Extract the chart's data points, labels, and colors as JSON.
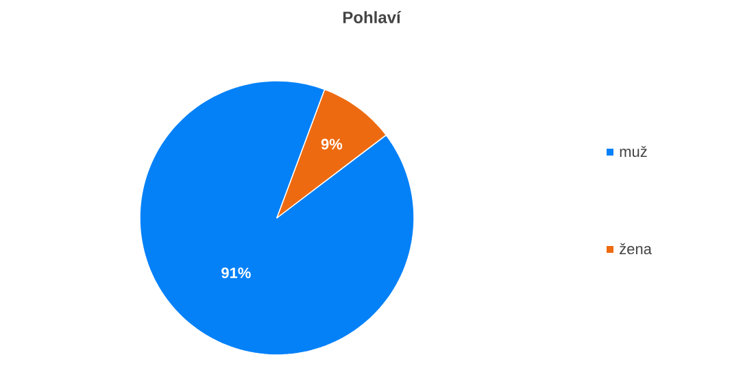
{
  "chart_data": {
    "type": "pie",
    "title": "Pohlaví",
    "categories": [
      "muž",
      "žena"
    ],
    "values": [
      91,
      9
    ],
    "colors": [
      "#0581f8",
      "#ee6a10"
    ],
    "value_labels": [
      "91%",
      "9%"
    ],
    "legend": "right"
  }
}
